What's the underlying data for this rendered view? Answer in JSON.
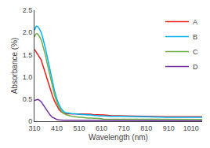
{
  "chart_data": {
    "type": "line",
    "xlabel": "Wavelength (nm)",
    "ylabel": "Absorbance (%)",
    "xlim": [
      310,
      1060
    ],
    "ylim": [
      0,
      2.5
    ],
    "xticks": [
      310,
      410,
      510,
      610,
      710,
      810,
      910,
      1010
    ],
    "yticks": [
      0,
      0.5,
      {
        "value": 1.0,
        "label": "1.0"
      },
      1.5,
      {
        "value": 2.0,
        "label": "2.0"
      },
      2.5
    ],
    "grid": false,
    "legend": "upper right",
    "series": [
      {
        "name": "A",
        "color": "#e8201a",
        "x": [
          310,
          315,
          320,
          325,
          330,
          335,
          340,
          345,
          350,
          360,
          370,
          380,
          390,
          400,
          410,
          420,
          430,
          440,
          450,
          460,
          470,
          480,
          490,
          500,
          510,
          520,
          530,
          540,
          550,
          560,
          570,
          580,
          590,
          600,
          620,
          650,
          700,
          750,
          800,
          900,
          1000,
          1060
        ],
        "values": [
          1.62,
          1.58,
          1.55,
          1.52,
          1.48,
          1.44,
          1.38,
          1.3,
          1.22,
          1.05,
          0.88,
          0.72,
          0.58,
          0.45,
          0.34,
          0.26,
          0.21,
          0.18,
          0.17,
          0.17,
          0.17,
          0.17,
          0.17,
          0.17,
          0.17,
          0.17,
          0.16,
          0.16,
          0.16,
          0.16,
          0.15,
          0.15,
          0.15,
          0.14,
          0.14,
          0.13,
          0.12,
          0.12,
          0.11,
          0.1,
          0.1,
          0.1
        ]
      },
      {
        "name": "B",
        "color": "#00b0f0",
        "x": [
          310,
          313,
          316,
          320,
          325,
          330,
          335,
          340,
          345,
          350,
          360,
          370,
          380,
          390,
          400,
          410,
          420,
          430,
          440,
          450,
          460,
          470,
          480,
          490,
          500,
          510,
          520,
          530,
          540,
          550,
          560,
          570,
          580,
          590,
          600,
          620,
          650,
          700,
          750,
          800,
          900,
          1060
        ],
        "values": [
          2.05,
          2.1,
          2.13,
          2.14,
          2.13,
          2.1,
          2.06,
          2.0,
          1.92,
          1.83,
          1.62,
          1.38,
          1.14,
          0.9,
          0.68,
          0.5,
          0.37,
          0.28,
          0.22,
          0.19,
          0.18,
          0.17,
          0.17,
          0.17,
          0.16,
          0.16,
          0.15,
          0.15,
          0.14,
          0.14,
          0.14,
          0.13,
          0.13,
          0.13,
          0.12,
          0.12,
          0.11,
          0.11,
          0.1,
          0.1,
          0.09,
          0.09
        ]
      },
      {
        "name": "C",
        "color": "#70ad47",
        "x": [
          310,
          313,
          316,
          320,
          325,
          330,
          335,
          340,
          345,
          350,
          360,
          370,
          380,
          390,
          400,
          410,
          420,
          430,
          440,
          450,
          460,
          470,
          480,
          490,
          500,
          510,
          520,
          530,
          540,
          550,
          560,
          570,
          580,
          590,
          600,
          620,
          650,
          700,
          750,
          800,
          900,
          1060
        ],
        "values": [
          1.9,
          1.94,
          1.96,
          1.97,
          1.96,
          1.93,
          1.89,
          1.83,
          1.75,
          1.66,
          1.46,
          1.23,
          1.0,
          0.78,
          0.59,
          0.43,
          0.31,
          0.23,
          0.18,
          0.15,
          0.13,
          0.12,
          0.11,
          0.1,
          0.1,
          0.09,
          0.09,
          0.08,
          0.08,
          0.07,
          0.07,
          0.07,
          0.06,
          0.06,
          0.06,
          0.05,
          0.05,
          0.05,
          0.04,
          0.04,
          0.04,
          0.04
        ]
      },
      {
        "name": "D",
        "color": "#7030a0",
        "x": [
          310,
          315,
          320,
          325,
          330,
          335,
          340,
          345,
          350,
          360,
          370,
          380,
          390,
          400,
          410,
          420,
          430,
          440,
          450,
          460,
          470,
          480,
          490,
          500,
          510,
          520,
          530,
          540,
          600,
          700,
          800,
          1060
        ],
        "values": [
          0.47,
          0.48,
          0.49,
          0.49,
          0.48,
          0.46,
          0.44,
          0.4,
          0.36,
          0.28,
          0.2,
          0.14,
          0.09,
          0.06,
          0.04,
          0.03,
          0.02,
          0.02,
          0.02,
          0.02,
          0.01,
          0.01,
          0.01,
          0.01,
          0.01,
          0.01,
          0.01,
          0.01,
          0.01,
          0.01,
          0.01,
          0.01
        ]
      }
    ]
  }
}
